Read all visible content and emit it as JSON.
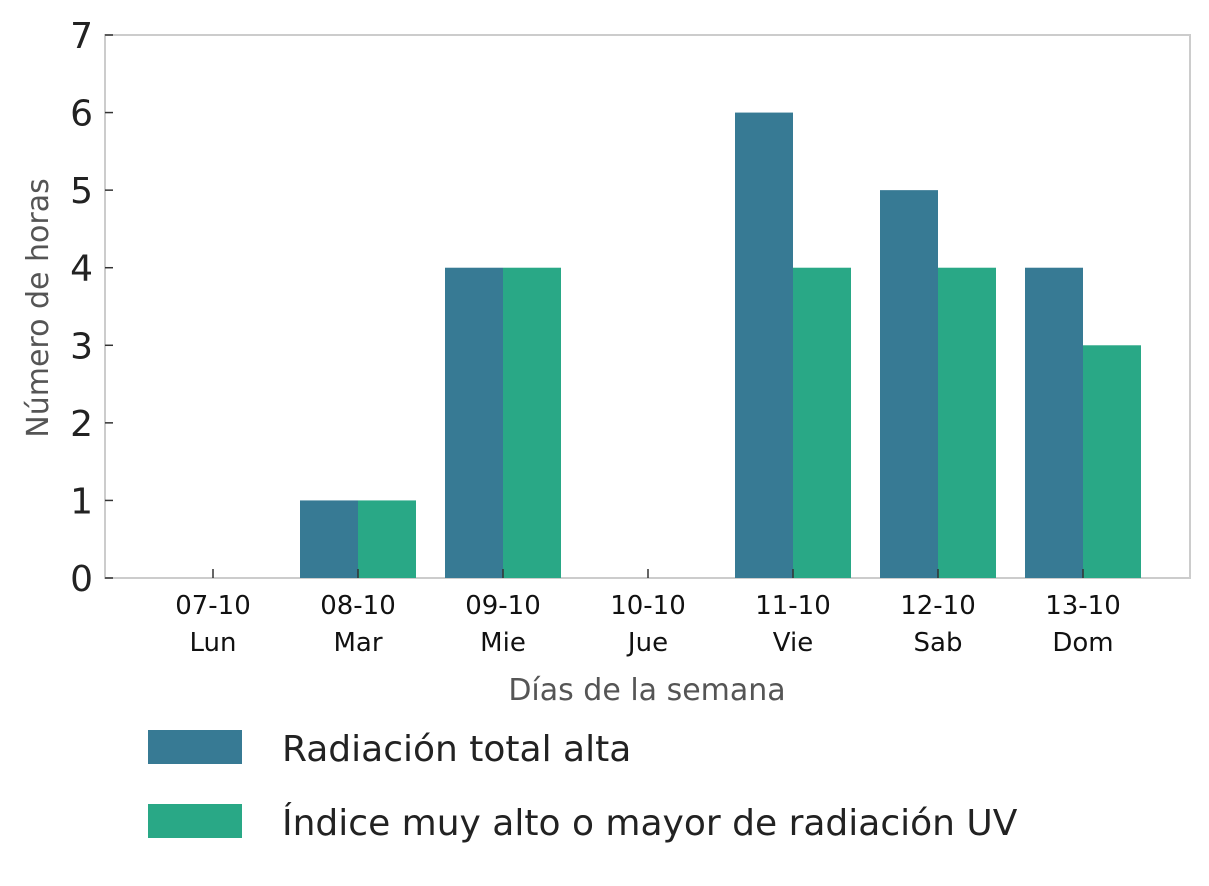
{
  "chart_data": {
    "type": "bar",
    "title": "",
    "xlabel": "Días de la semana",
    "ylabel": "Número de horas",
    "ylim": [
      0,
      7
    ],
    "yticks": [
      "0",
      "1",
      "2",
      "3",
      "4",
      "5",
      "6",
      "7"
    ],
    "grid": false,
    "legend_position": "bottom",
    "categories": [
      [
        "07-10",
        "Lun"
      ],
      [
        "08-10",
        "Mar"
      ],
      [
        "09-10",
        "Mie"
      ],
      [
        "10-10",
        "Jue"
      ],
      [
        "11-10",
        "Vie"
      ],
      [
        "12-10",
        "Sab"
      ],
      [
        "13-10",
        "Dom"
      ]
    ],
    "series": [
      {
        "name": "Radiación total alta",
        "color": "#377a94",
        "values": [
          0,
          1,
          4,
          0,
          6,
          5,
          4
        ]
      },
      {
        "name": "Índice muy alto o mayor de radiación UV",
        "color": "#29a886",
        "values": [
          0,
          1,
          4,
          0,
          4,
          4,
          3
        ]
      }
    ]
  }
}
